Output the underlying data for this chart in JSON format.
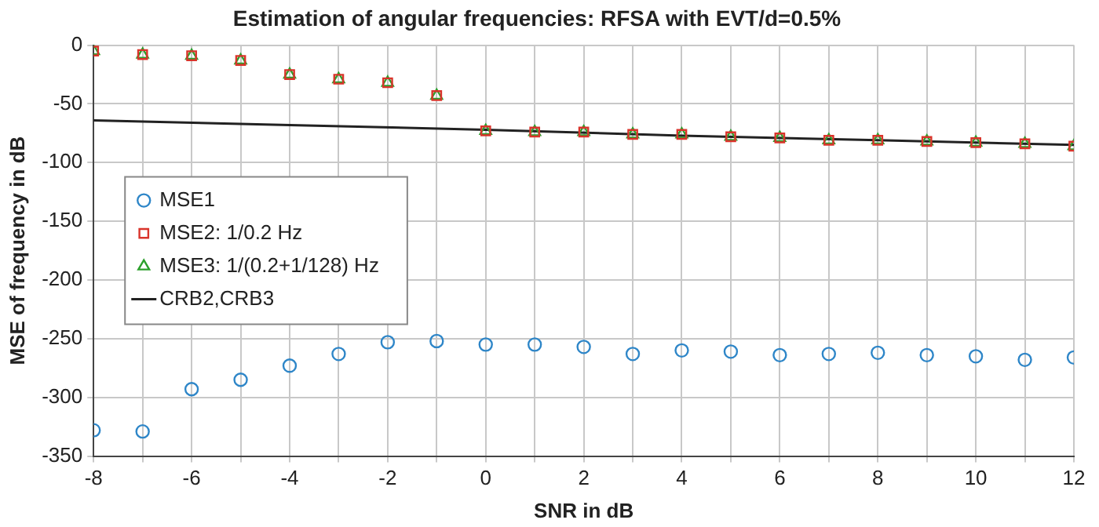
{
  "chart_data": {
    "type": "scatter",
    "title": "Estimation of angular frequencies: RFSA with EVT/d=0.5%",
    "xlabel": "SNR in dB",
    "ylabel": "MSE of frequency in dB",
    "x": [
      -8,
      -7,
      -6,
      -5,
      -4,
      -3,
      -2,
      -1,
      0,
      1,
      2,
      3,
      4,
      5,
      6,
      7,
      8,
      9,
      10,
      11,
      12
    ],
    "series": [
      {
        "name": "MSE1",
        "color": "#2e86c8",
        "marker": "circle",
        "values": [
          -328,
          -329,
          -293,
          -285,
          -273,
          -263,
          -253,
          -252,
          -255,
          -255,
          -257,
          -263,
          -260,
          -261,
          -264,
          -263,
          -262,
          -264,
          -265,
          -268,
          -266
        ]
      },
      {
        "name": "MSE2: 1/0.2 Hz",
        "color": "#d9342b",
        "marker": "square",
        "values": [
          -5,
          -8,
          -9,
          -13,
          -25,
          -29,
          -32,
          -43,
          -73,
          -74,
          -74,
          -76,
          -76,
          -78,
          -79,
          -81,
          -81,
          -82,
          -83,
          -84,
          -86
        ]
      },
      {
        "name": "MSE3: 1/(0.2+1/128) Hz",
        "color": "#2ca02c",
        "marker": "triangle",
        "values": [
          -5,
          -8,
          -9,
          -13,
          -25,
          -29,
          -32,
          -43,
          -73,
          -74,
          -74,
          -76,
          -76,
          -78,
          -79,
          -81,
          -81,
          -82,
          -83,
          -84,
          -86
        ]
      },
      {
        "name": "CRB2,CRB3",
        "type": "line",
        "color": "#222222",
        "marker": "none",
        "x": [
          -8,
          -4,
          0,
          4,
          8,
          12
        ],
        "values": [
          -64,
          -68,
          -72,
          -77,
          -81,
          -85
        ]
      }
    ],
    "xlim": [
      -8,
      12
    ],
    "xticks": [
      -8,
      {
        "value": -7,
        "label": null
      },
      -6,
      {
        "value": -5,
        "label": null
      },
      -4,
      {
        "value": -3,
        "label": null
      },
      -2,
      {
        "value": -1,
        "label": null
      },
      0,
      {
        "value": 1,
        "label": null
      },
      2,
      {
        "value": 3,
        "label": null
      },
      4,
      {
        "value": 5,
        "label": null
      },
      6,
      {
        "value": 7,
        "label": null
      },
      8,
      {
        "value": 9,
        "label": null
      },
      10,
      {
        "value": 11,
        "label": null
      },
      12
    ],
    "ylim": [
      -350,
      0
    ],
    "yticks": [
      -350,
      -300,
      -250,
      -200,
      -150,
      -100,
      -50,
      0
    ],
    "grid": true,
    "legend": "center left"
  }
}
